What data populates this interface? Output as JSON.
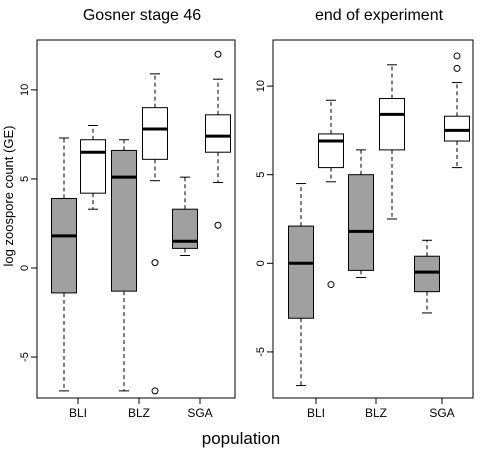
{
  "figure": {
    "xlabel": "population",
    "ylabel": "log zoospore count (GE)"
  },
  "chart_data": [
    {
      "type": "boxplot",
      "title": "Gosner stage 46",
      "ylim": [
        -7.3,
        12.8
      ],
      "y_ticks": [
        -5,
        0,
        5,
        10
      ],
      "x_tick_labels": [
        "BLI",
        "BLZ",
        "SGA"
      ],
      "colors": {
        "gray_box": "#a0a0a0",
        "white_box": "#ffffff"
      },
      "boxes": [
        {
          "group": "BLI",
          "fill": "gray",
          "whisker_low": -6.9,
          "q1": -1.4,
          "median": 1.8,
          "q3": 3.9,
          "whisker_high": 7.3,
          "outliers": []
        },
        {
          "group": "BLI",
          "fill": "white",
          "whisker_low": 3.3,
          "q1": 4.2,
          "median": 6.5,
          "q3": 7.2,
          "whisker_high": 8.0,
          "outliers": []
        },
        {
          "group": "BLZ",
          "fill": "gray",
          "whisker_low": -6.9,
          "q1": -1.3,
          "median": 5.1,
          "q3": 6.6,
          "whisker_high": 7.2,
          "outliers": []
        },
        {
          "group": "BLZ",
          "fill": "white",
          "whisker_low": 4.9,
          "q1": 6.1,
          "median": 7.8,
          "q3": 9.0,
          "whisker_high": 10.9,
          "outliers": [
            0.3,
            -6.9
          ]
        },
        {
          "group": "SGA",
          "fill": "gray",
          "whisker_low": 0.7,
          "q1": 1.1,
          "median": 1.5,
          "q3": 3.3,
          "whisker_high": 5.1,
          "outliers": []
        },
        {
          "group": "SGA",
          "fill": "white",
          "whisker_low": 4.8,
          "q1": 6.5,
          "median": 7.4,
          "q3": 8.6,
          "whisker_high": 10.6,
          "outliers": [
            12.0,
            2.4
          ]
        }
      ]
    },
    {
      "type": "boxplot",
      "title": "end of experiment",
      "ylim": [
        -7.6,
        12.6
      ],
      "y_ticks": [
        -5,
        0,
        5,
        10
      ],
      "x_tick_labels": [
        "BLI",
        "BLZ",
        "SGA"
      ],
      "colors": {
        "gray_box": "#a0a0a0",
        "white_box": "#ffffff"
      },
      "boxes": [
        {
          "group": "BLI",
          "fill": "gray",
          "whisker_low": -6.9,
          "q1": -3.1,
          "median": 0.0,
          "q3": 2.1,
          "whisker_high": 4.5,
          "outliers": []
        },
        {
          "group": "BLI",
          "fill": "white",
          "whisker_low": 4.6,
          "q1": 5.4,
          "median": 6.9,
          "q3": 7.3,
          "whisker_high": 9.2,
          "outliers": [
            -1.2
          ]
        },
        {
          "group": "BLZ",
          "fill": "gray",
          "whisker_low": -0.8,
          "q1": -0.4,
          "median": 1.8,
          "q3": 5.0,
          "whisker_high": 6.4,
          "outliers": []
        },
        {
          "group": "BLZ",
          "fill": "white",
          "whisker_low": 2.5,
          "q1": 6.4,
          "median": 8.4,
          "q3": 9.3,
          "whisker_high": 11.2,
          "outliers": []
        },
        {
          "group": "SGA",
          "fill": "gray",
          "whisker_low": -2.8,
          "q1": -1.6,
          "median": -0.5,
          "q3": 0.4,
          "whisker_high": 1.3,
          "outliers": []
        },
        {
          "group": "SGA",
          "fill": "white",
          "whisker_low": 5.4,
          "q1": 6.9,
          "median": 7.5,
          "q3": 8.3,
          "whisker_high": 10.2,
          "outliers": [
            11.7,
            11.0
          ]
        }
      ]
    }
  ]
}
